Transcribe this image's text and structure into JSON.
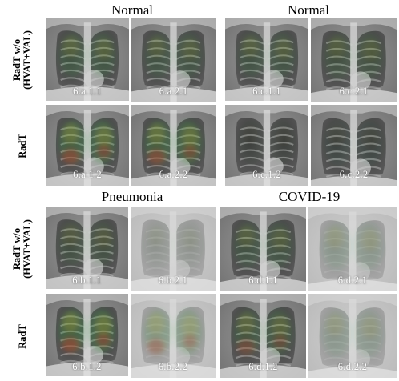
{
  "quadrants": [
    {
      "id": "a",
      "title": "Normal",
      "panels": [
        {
          "label": "6.a.1.1",
          "heat": 0.5,
          "hot": false,
          "variant": "normal"
        },
        {
          "label": "6.a.2.1",
          "heat": 0.45,
          "hot": false,
          "variant": "normal"
        },
        {
          "label": "6.a.1.2",
          "heat": 0.8,
          "hot": true,
          "variant": "normal"
        },
        {
          "label": "6.a.2.2",
          "heat": 0.75,
          "hot": true,
          "variant": "normal"
        }
      ]
    },
    {
      "id": "c",
      "title": "Normal",
      "panels": [
        {
          "label": "6.c.1.1",
          "heat": 0.45,
          "hot": false,
          "variant": "normal"
        },
        {
          "label": "6.c.2.1",
          "heat": 0.4,
          "hot": false,
          "variant": "normal"
        },
        {
          "label": "6.c.1.2",
          "heat": 0.05,
          "hot": false,
          "variant": "normal"
        },
        {
          "label": "6.c.2.2",
          "heat": 0.1,
          "hot": false,
          "variant": "normal"
        }
      ]
    },
    {
      "id": "b",
      "title": "Pneumonia",
      "panels": [
        {
          "label": "6.b.1.1",
          "heat": 0.35,
          "hot": false,
          "variant": "normal"
        },
        {
          "label": "6.b.2.1",
          "heat": 0.15,
          "hot": false,
          "variant": "hazy"
        },
        {
          "label": "6.b.1.2",
          "heat": 0.85,
          "hot": true,
          "variant": "normal"
        },
        {
          "label": "6.b.2.2",
          "heat": 0.55,
          "hot": true,
          "variant": "hazy"
        }
      ]
    },
    {
      "id": "d",
      "title": "COVID-19",
      "panels": [
        {
          "label": "6.d.1.1",
          "heat": 0.45,
          "hot": false,
          "variant": "normal"
        },
        {
          "label": "6.d.2.1",
          "heat": 0.3,
          "hot": false,
          "variant": "hazy"
        },
        {
          "label": "6.d.1.2",
          "heat": 0.55,
          "hot": true,
          "variant": "normal"
        },
        {
          "label": "6.d.2.2",
          "heat": 0.3,
          "hot": false,
          "variant": "hazy"
        }
      ]
    }
  ],
  "row_labels": {
    "without": [
      "RadT w/o",
      "(HVAT+VAL)"
    ],
    "with": [
      "RadT"
    ]
  }
}
